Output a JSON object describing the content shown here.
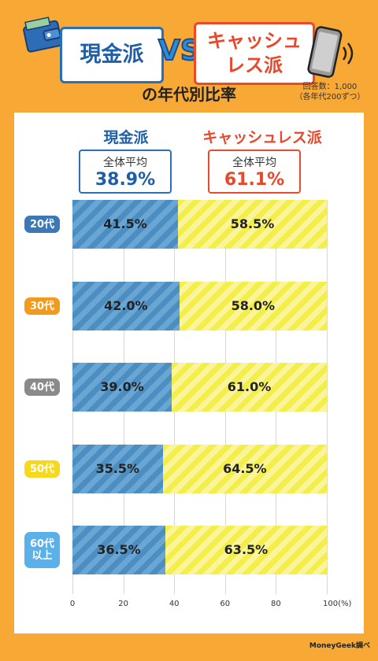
{
  "header": {
    "cash_title": "現金派",
    "vs": "VS",
    "cashless_title_line1": "キャッシュ",
    "cashless_title_line2": "レス派",
    "subtitle": "の年代別比率",
    "note_line1": "回答数：1,000",
    "note_line2": "（各年代200ずつ）"
  },
  "legend": {
    "cash_label": "現金派",
    "cashless_label": "キャッシュレス派",
    "avg_label": "全体平均",
    "cash_avg": "38.9%",
    "cashless_avg": "61.1%"
  },
  "credit": "MoneyGeek調べ",
  "colors": {
    "cash": "#4c8ec2",
    "cashless": "#f4ee4a",
    "accent_blue": "#1f5ea8",
    "accent_red": "#e8472a"
  },
  "chart_data": {
    "type": "bar",
    "stacked": true,
    "orientation": "horizontal",
    "categories": [
      "20代",
      "30代",
      "40代",
      "50代",
      "60代\n以上"
    ],
    "series": [
      {
        "name": "現金派",
        "values": [
          41.5,
          42.0,
          39.0,
          35.5,
          36.5
        ],
        "labels": [
          "41.5%",
          "42.0%",
          "39.0%",
          "35.5%",
          "36.5%"
        ]
      },
      {
        "name": "キャッシュレス派",
        "values": [
          58.5,
          58.0,
          61.0,
          64.5,
          63.5
        ],
        "labels": [
          "58.5%",
          "58.0%",
          "61.0%",
          "64.5%",
          "63.5%"
        ]
      }
    ],
    "category_colors": [
      "#3b78b5",
      "#f39a1c",
      "#8a8a8a",
      "#f5d91a",
      "#5cb0ea"
    ],
    "xticks": [
      "0",
      "20",
      "40",
      "60",
      "80",
      "100(%)"
    ],
    "xlim": [
      0,
      100
    ]
  }
}
